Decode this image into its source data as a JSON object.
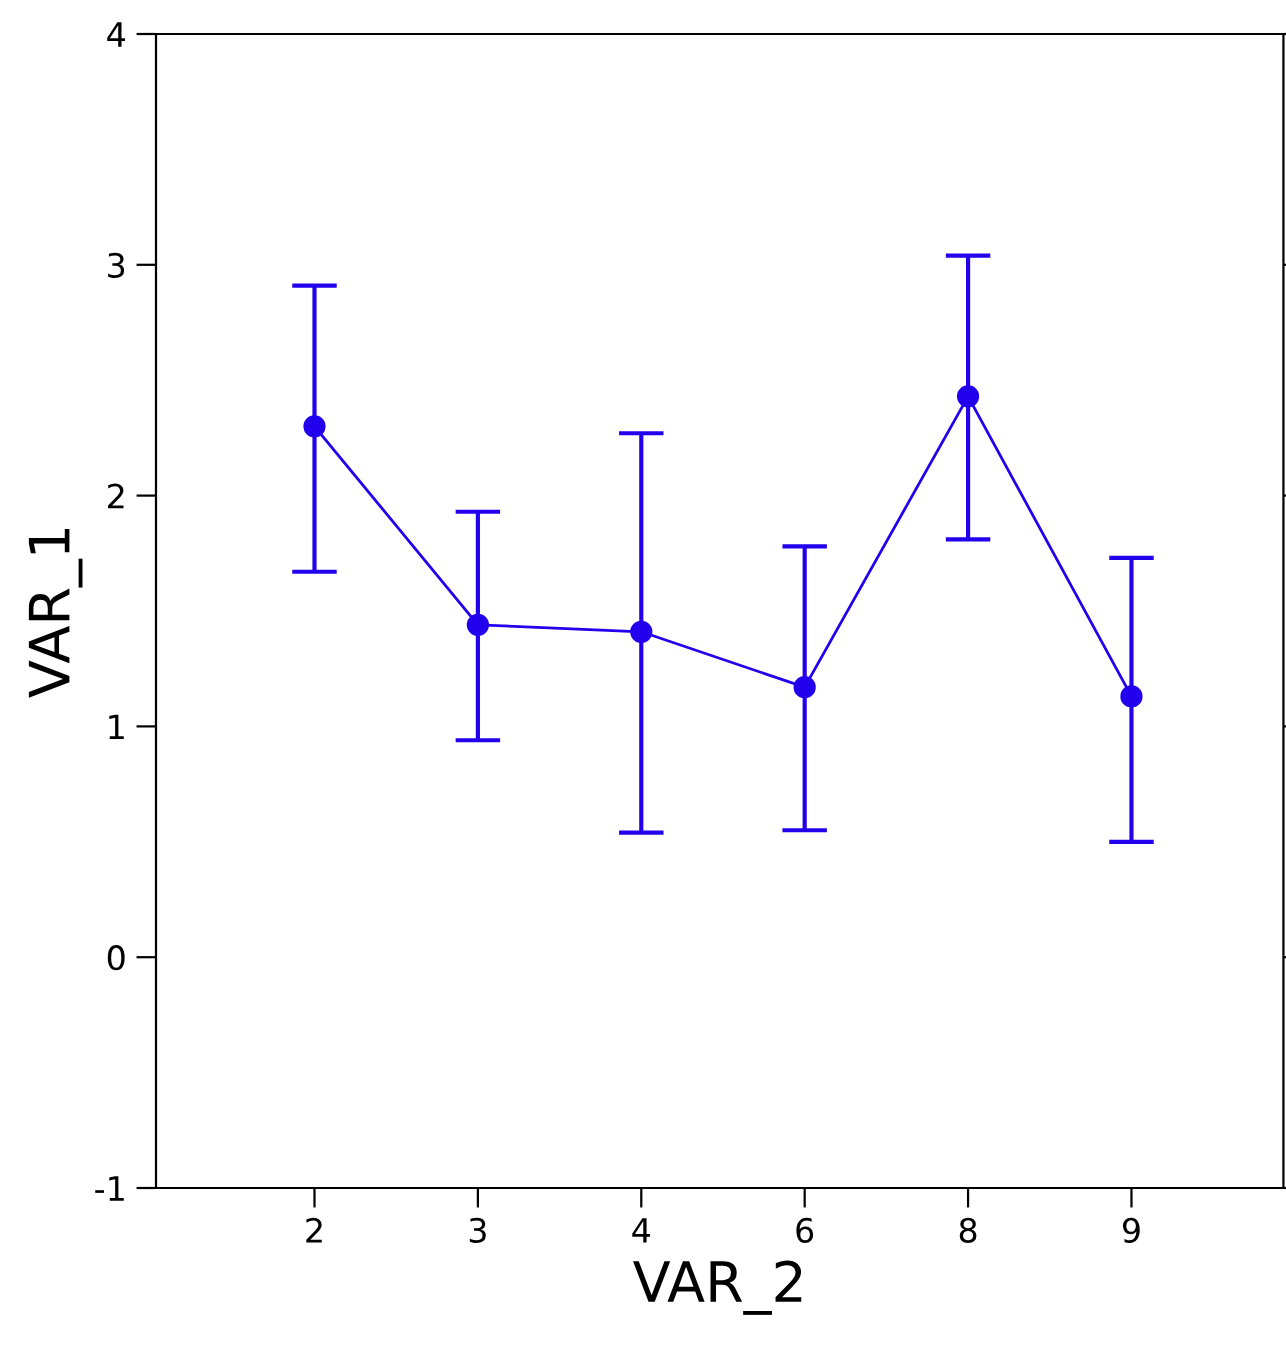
{
  "chart_data": {
    "type": "line",
    "xlabel": "VAR_2",
    "ylabel": "VAR_1",
    "categories": [
      "2",
      "3",
      "4",
      "6",
      "8",
      "9"
    ],
    "series": [
      {
        "color": "#2200ee",
        "values": [
          2.3,
          1.44,
          1.41,
          1.17,
          2.43,
          1.13
        ],
        "errors": [
          [
            1.67,
            2.91
          ],
          [
            0.94,
            1.93
          ],
          [
            0.54,
            2.27
          ],
          [
            0.55,
            1.78
          ],
          [
            1.81,
            3.04
          ],
          [
            0.5,
            1.73
          ]
        ]
      }
    ],
    "ylim": [
      -1,
      4
    ],
    "yticks": [
      -1,
      0,
      1,
      2,
      3,
      4
    ],
    "grid": false,
    "marker": "circle",
    "line_style": "solid"
  }
}
